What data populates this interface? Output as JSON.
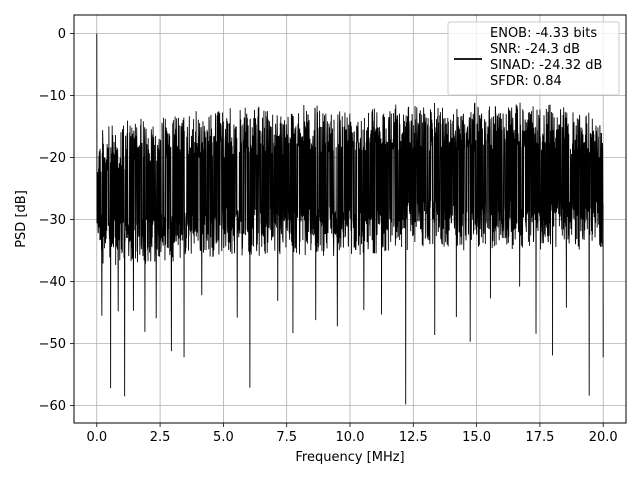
{
  "chart_data": {
    "type": "line",
    "title": "",
    "xlabel": "Frequency [MHz]",
    "ylabel": "PSD [dB]",
    "xlim": [
      -0.9,
      20.9
    ],
    "ylim": [
      -62.8,
      3.0
    ],
    "xticks": [
      0.0,
      2.5,
      5.0,
      7.5,
      10.0,
      12.5,
      15.0,
      17.5,
      20.0
    ],
    "xtick_labels": [
      "0.0",
      "2.5",
      "5.0",
      "7.5",
      "10.0",
      "12.5",
      "15.0",
      "17.5",
      "20.0"
    ],
    "yticks": [
      0,
      -10,
      -20,
      -30,
      -40,
      -50,
      -60
    ],
    "ytick_labels": [
      "0",
      "−10",
      "−20",
      "−30",
      "−40",
      "−50",
      "−60"
    ],
    "grid": true,
    "legend_position": "top-right",
    "line_color": "#000000",
    "series": [
      {
        "x_range": [
          0.0,
          20.0
        ],
        "peak": {
          "x": 0.0,
          "y": 0.0
        },
        "envelope": {
          "x": [
            0.0,
            0.3,
            1.0,
            2.5,
            5.0,
            7.5,
            10.0,
            12.5,
            15.0,
            17.5,
            20.0
          ],
          "upper": [
            -15,
            -15,
            -14,
            -13,
            -12,
            -11.5,
            -11,
            -11,
            -11,
            -11,
            -13
          ],
          "lower": [
            -34,
            -38,
            -38,
            -37,
            -36,
            -36,
            -36,
            -35,
            -35,
            -35,
            -35
          ]
        },
        "deep_dips": [
          {
            "x": 0.2,
            "y": -45.5
          },
          {
            "x": 0.55,
            "y": -57.2
          },
          {
            "x": 0.85,
            "y": -44.8
          },
          {
            "x": 1.1,
            "y": -58.5
          },
          {
            "x": 1.45,
            "y": -44.7
          },
          {
            "x": 1.9,
            "y": -48.1
          },
          {
            "x": 2.35,
            "y": -45.9
          },
          {
            "x": 2.95,
            "y": -51.2
          },
          {
            "x": 3.45,
            "y": -52.2
          },
          {
            "x": 4.15,
            "y": -42.2
          },
          {
            "x": 5.55,
            "y": -45.8
          },
          {
            "x": 6.05,
            "y": -57.1
          },
          {
            "x": 7.15,
            "y": -43.1
          },
          {
            "x": 7.75,
            "y": -48.3
          },
          {
            "x": 8.65,
            "y": -46.2
          },
          {
            "x": 9.5,
            "y": -47.2
          },
          {
            "x": 10.55,
            "y": -44.6
          },
          {
            "x": 11.25,
            "y": -45.3
          },
          {
            "x": 12.2,
            "y": -59.8
          },
          {
            "x": 13.35,
            "y": -48.6
          },
          {
            "x": 14.2,
            "y": -45.7
          },
          {
            "x": 14.75,
            "y": -49.7
          },
          {
            "x": 15.55,
            "y": -42.7
          },
          {
            "x": 16.7,
            "y": -40.8
          },
          {
            "x": 17.35,
            "y": -48.4
          },
          {
            "x": 18.0,
            "y": -51.9
          },
          {
            "x": 18.55,
            "y": -44.2
          },
          {
            "x": 19.45,
            "y": -58.4
          },
          {
            "x": 20.0,
            "y": -52.2
          }
        ]
      }
    ],
    "legend": {
      "entries": [
        "ENOB: -4.33 bits",
        "SNR: -24.3 dB",
        "SINAD: -24.32 dB",
        "SFDR: 0.84"
      ]
    }
  }
}
